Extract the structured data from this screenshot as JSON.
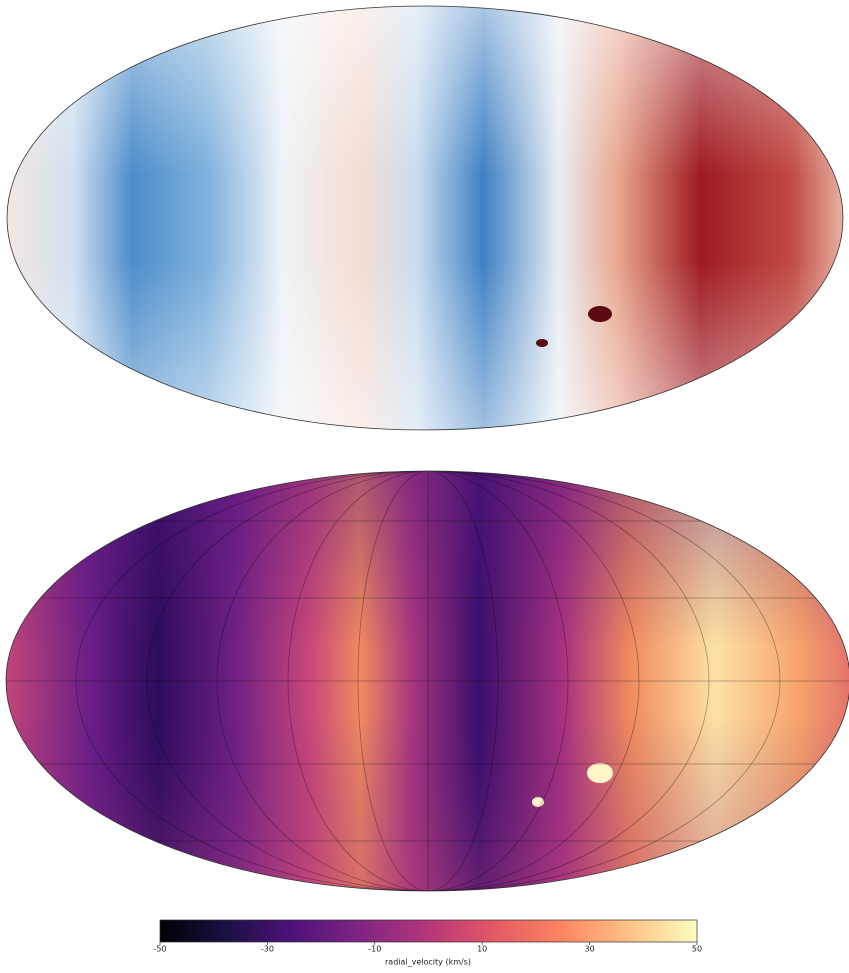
{
  "chart_data": {
    "type": "colorbar",
    "xlabel": "radial_velocity (km/s)",
    "xlim": [
      -50,
      50
    ],
    "xticks": [
      -50,
      -30,
      -10,
      10,
      30,
      50
    ],
    "colormap": "magma"
  }
}
